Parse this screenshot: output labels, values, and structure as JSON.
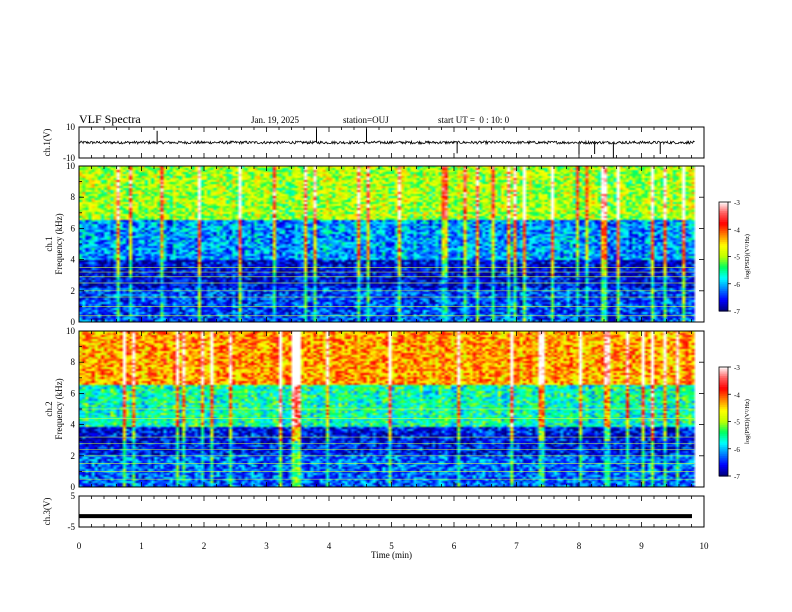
{
  "header": {
    "title": "VLF Spectra",
    "date": "Jan. 19, 2025",
    "station": "station=OUJ",
    "start": "start UT =  0 : 10: 0"
  },
  "chart_data": [
    {
      "type": "line",
      "name": "waveform-ch1",
      "ylabel": "ch.1(V)",
      "ylim": [
        -10,
        10
      ],
      "yticks": [
        -10,
        10
      ],
      "xlim": [
        0,
        10
      ],
      "baseline": 0,
      "spikes_min": [
        1.25,
        3.8,
        4.6,
        6.05,
        8.0,
        8.25,
        8.55,
        9.3
      ],
      "style": "noisy trace near 0 V with sporadic spikes"
    },
    {
      "type": "heatmap",
      "name": "spectrogram-ch1",
      "ylabel": "ch.1\nFrequency (kHz)",
      "xlim": [
        0,
        10
      ],
      "ylim": [
        0,
        10
      ],
      "yticks": [
        0,
        2,
        4,
        6,
        8,
        10
      ],
      "data_extent_min": 9.85,
      "colorbar": {
        "label": "log(PSD)(V²/Hz)",
        "range": [
          -7,
          -3
        ],
        "ticks": [
          -3,
          -4,
          -5,
          -6,
          -7
        ]
      },
      "bands_khz": [
        {
          "from": 0,
          "to": 2.2,
          "level": -6.4
        },
        {
          "from": 2.2,
          "to": 4.0,
          "level": -6.7
        },
        {
          "from": 4.0,
          "to": 6.5,
          "level": -6.1
        },
        {
          "from": 6.5,
          "to": 10,
          "level": -5.0
        }
      ],
      "tone_lines_khz": [
        0.4,
        1.0,
        1.6,
        2.0,
        2.5,
        2.9,
        3.2,
        3.5
      ]
    },
    {
      "type": "heatmap",
      "name": "spectrogram-ch2",
      "ylabel": "ch.2\nFrequency (kHz)",
      "xlim": [
        0,
        10
      ],
      "ylim": [
        0,
        10
      ],
      "yticks": [
        0,
        2,
        4,
        6,
        8,
        10
      ],
      "data_extent_min": 9.85,
      "colorbar": {
        "label": "log(PSD)(V²/Hz)",
        "range": [
          -7,
          -3
        ],
        "ticks": [
          -3,
          -4,
          -5,
          -6,
          -7
        ]
      },
      "bands_khz": [
        {
          "from": 0,
          "to": 2.0,
          "level": -6.3
        },
        {
          "from": 2.0,
          "to": 3.8,
          "level": -6.6
        },
        {
          "from": 3.8,
          "to": 6.5,
          "level": -5.6
        },
        {
          "from": 6.5,
          "to": 10,
          "level": -4.3
        }
      ],
      "tone_lines_khz": [
        0.5,
        1.0,
        1.5,
        2.0,
        2.4,
        2.8,
        3.2,
        4.4,
        5.0
      ]
    },
    {
      "type": "line",
      "name": "waveform-ch3",
      "ylabel": "ch.3(V)",
      "ylim": [
        -5,
        5
      ],
      "yticks": [
        -5,
        5
      ],
      "xlim": [
        0,
        10
      ],
      "baseline": -1.5,
      "style": "thick flat trace"
    }
  ],
  "xaxis": {
    "label": "Time (min)",
    "ticks": [
      "0",
      "1",
      "2",
      "3",
      "4",
      "5",
      "6",
      "7",
      "8",
      "9",
      "10"
    ]
  },
  "colors": {
    "cmap": [
      "#00007a",
      "#0000ff",
      "#0080ff",
      "#00ffff",
      "#00ff60",
      "#c0ff00",
      "#ffff00",
      "#ff8000",
      "#ff0000",
      "#ff6060",
      "#ffffff"
    ]
  }
}
